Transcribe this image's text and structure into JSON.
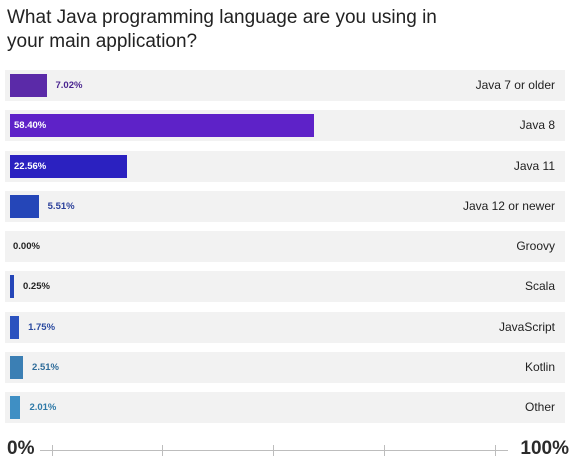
{
  "title": "What Java programming language are you using in your main application?",
  "chart_data": {
    "type": "bar",
    "orientation": "horizontal",
    "categories": [
      "Java 7 or older",
      "Java 8",
      "Java 11",
      "Java 12 or newer",
      "Groovy",
      "Scala",
      "JavaScript",
      "Kotlin",
      "Other"
    ],
    "values": [
      7.02,
      58.4,
      22.56,
      5.51,
      0.0,
      0.25,
      1.75,
      2.51,
      2.01
    ],
    "value_labels": [
      "7.02%",
      "58.40%",
      "22.56%",
      "5.51%",
      "0.00%",
      "0.25%",
      "1.75%",
      "2.51%",
      "2.01%"
    ],
    "colors": [
      "#5b2aa8",
      "#5e22c8",
      "#2b21c0",
      "#2546b8",
      "#2546b8",
      "#2546b8",
      "#2b52bf",
      "#3b7fb4",
      "#3f8fc4"
    ],
    "label_colors": [
      "#4a2590",
      "#ffffff",
      "#ffffff",
      "#2a3f9a",
      "#222222",
      "#222222",
      "#2a4aa0",
      "#2f6c9a",
      "#2f7aa8"
    ],
    "xlim": [
      0,
      100
    ],
    "axis_min_label": "0%",
    "axis_max_label": "100%",
    "grid": false
  }
}
